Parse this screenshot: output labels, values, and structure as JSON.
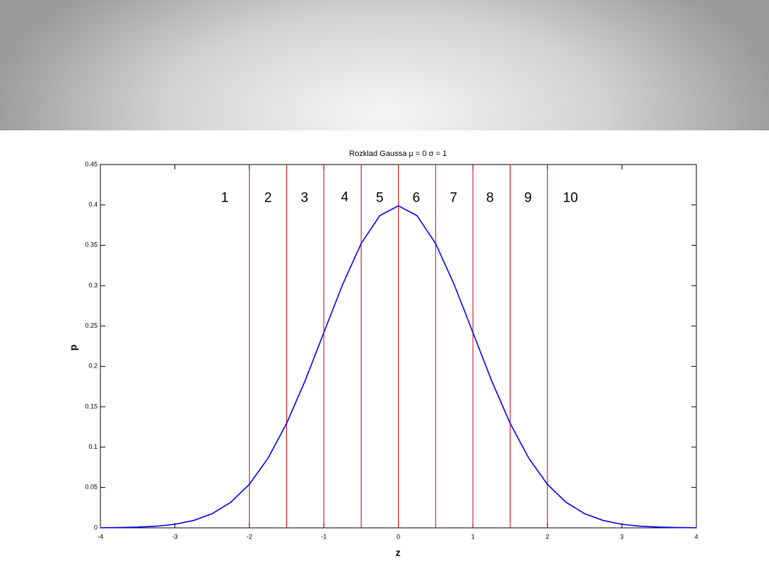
{
  "chart_data": {
    "type": "line",
    "title": "Rozklad Gaussa μ = 0 σ = 1",
    "x_label": "z",
    "y_label": "p",
    "x": [
      -4,
      -3.75,
      -3.5,
      -3.25,
      -3,
      -2.75,
      -2.5,
      -2.25,
      -2,
      -1.75,
      -1.5,
      -1.25,
      -1,
      -0.75,
      -0.5,
      -0.25,
      0,
      0.25,
      0.5,
      0.75,
      1,
      1.25,
      1.5,
      1.75,
      2,
      2.25,
      2.5,
      2.75,
      3,
      3.25,
      3.5,
      3.75,
      4
    ],
    "series": [
      {
        "color": "#0000ff",
        "values": [
          0.0001,
          0.0004,
          0.0009,
          0.002,
          0.0044,
          0.0091,
          0.0175,
          0.0317,
          0.054,
          0.0863,
          0.1295,
          0.1826,
          0.242,
          0.3011,
          0.3521,
          0.3867,
          0.3989,
          0.3867,
          0.3521,
          0.3011,
          0.242,
          0.1826,
          0.1295,
          0.0863,
          0.054,
          0.0317,
          0.0175,
          0.0091,
          0.0044,
          0.002,
          0.0009,
          0.0004,
          0.0001
        ]
      }
    ],
    "vlines": [
      -2,
      -1.5,
      -1,
      -0.5,
      0,
      0.5,
      1,
      1.5,
      2
    ],
    "vline_color": "#cc0000",
    "annotations": [
      {
        "text": "1",
        "x": -2.33,
        "y": 0.408
      },
      {
        "text": "2",
        "x": -1.75,
        "y": 0.408
      },
      {
        "text": "3",
        "x": -1.26,
        "y": 0.408
      },
      {
        "text": "4",
        "x": -0.72,
        "y": 0.409
      },
      {
        "text": "5",
        "x": -0.25,
        "y": 0.408
      },
      {
        "text": "6",
        "x": 0.24,
        "y": 0.408
      },
      {
        "text": "7",
        "x": 0.74,
        "y": 0.408
      },
      {
        "text": "8",
        "x": 1.23,
        "y": 0.408
      },
      {
        "text": "9",
        "x": 1.74,
        "y": 0.408
      },
      {
        "text": "10",
        "x": 2.31,
        "y": 0.408
      }
    ],
    "xlim": [
      -4,
      4
    ],
    "xticks": [
      -4,
      -3,
      -2,
      -1,
      0,
      1,
      2,
      3,
      4
    ],
    "ylim": [
      0,
      0.45
    ],
    "yticks": [
      0,
      0.05,
      0.1,
      0.15,
      0.2,
      0.25,
      0.3,
      0.35,
      0.4,
      0.45
    ]
  }
}
